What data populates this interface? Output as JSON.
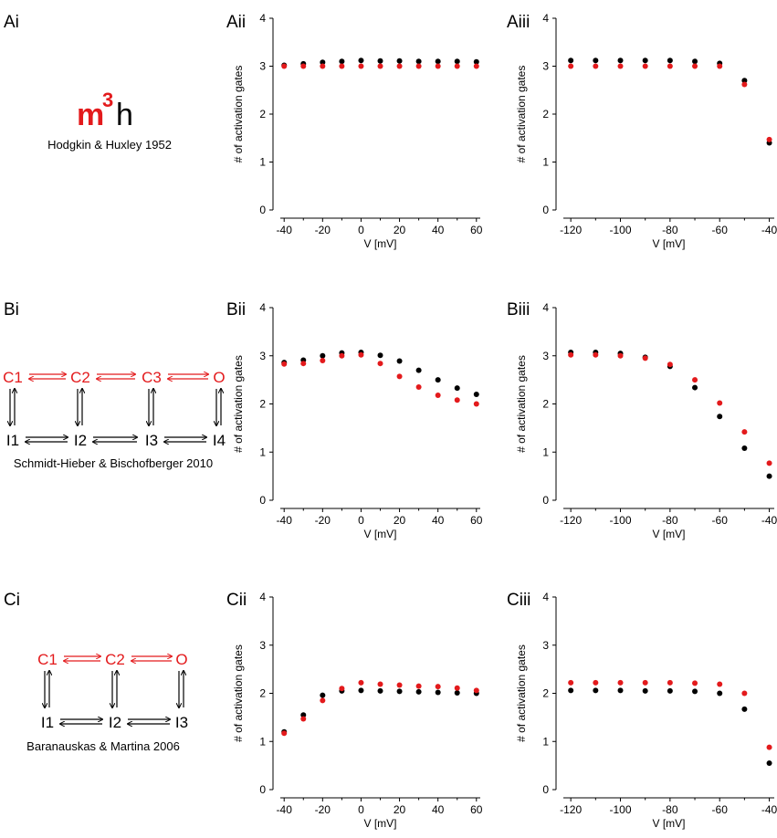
{
  "colors": {
    "model": "#e31a1c",
    "data": "#000000"
  },
  "panel_labels": {
    "ai": "Ai",
    "aii": "Aii",
    "aiii": "Aiii",
    "bi": "Bi",
    "bii": "Bii",
    "biii": "Biii",
    "ci": "Ci",
    "cii": "Cii",
    "ciii": "Ciii"
  },
  "hh": {
    "m": "m",
    "exp": "3",
    "h": "h",
    "citation": "Hodgkin & Huxley 1952"
  },
  "scheme_b": {
    "top": [
      "C1",
      "C2",
      "C3",
      "O"
    ],
    "bottom": [
      "I1",
      "I2",
      "I3",
      "I4"
    ],
    "citation": "Schmidt-Hieber & Bischofberger 2010"
  },
  "scheme_c": {
    "top": [
      "C1",
      "C2",
      "O"
    ],
    "bottom": [
      "I1",
      "I2",
      "I3"
    ],
    "citation": "Baranauskas & Martina 2006"
  },
  "chart_data": [
    {
      "id": "aii",
      "type": "scatter",
      "xlabel": "V [mV]",
      "ylabel": "# of activation gates",
      "xlim": [
        -42,
        62
      ],
      "ylim": [
        0,
        4
      ],
      "xticks": [
        "-40",
        "-20",
        "0",
        "20",
        "40",
        "60"
      ],
      "xtick_values": [
        -40,
        -20,
        0,
        20,
        40,
        60
      ],
      "yticks": [
        "0",
        "1",
        "2",
        "3",
        "4"
      ],
      "yticks_values": [
        0,
        1,
        2,
        3,
        4
      ],
      "series": [
        {
          "name": "black",
          "x": [
            -40,
            -30,
            -20,
            -10,
            0,
            10,
            20,
            30,
            40,
            50,
            60
          ],
          "values": [
            3.02,
            3.05,
            3.08,
            3.1,
            3.12,
            3.11,
            3.11,
            3.1,
            3.1,
            3.1,
            3.09
          ]
        },
        {
          "name": "red",
          "x": [
            -40,
            -30,
            -20,
            -10,
            0,
            10,
            20,
            30,
            40,
            50,
            60
          ],
          "values": [
            3.0,
            3.0,
            3.0,
            3.0,
            3.0,
            3.0,
            3.0,
            3.0,
            3.0,
            3.0,
            3.0
          ]
        }
      ]
    },
    {
      "id": "aiii",
      "type": "scatter",
      "xlabel": "V [mV]",
      "ylabel": "# of activation gates",
      "xlim": [
        -123,
        -38
      ],
      "ylim": [
        0,
        4
      ],
      "xticks": [
        "-120",
        "-100",
        "-80",
        "-60",
        "-40"
      ],
      "xtick_values": [
        -120,
        -100,
        -80,
        -60,
        -40
      ],
      "yticks": [
        "0",
        "1",
        "2",
        "3",
        "4"
      ],
      "yticks_values": [
        0,
        1,
        2,
        3,
        4
      ],
      "series": [
        {
          "name": "black",
          "x": [
            -120,
            -110,
            -100,
            -90,
            -80,
            -70,
            -60,
            -50,
            -40
          ],
          "values": [
            3.12,
            3.12,
            3.12,
            3.12,
            3.12,
            3.1,
            3.06,
            2.7,
            1.4
          ]
        },
        {
          "name": "red",
          "x": [
            -120,
            -110,
            -100,
            -90,
            -80,
            -70,
            -60,
            -50,
            -40
          ],
          "values": [
            3.0,
            3.0,
            3.0,
            3.0,
            3.0,
            3.0,
            3.0,
            2.62,
            1.47
          ]
        }
      ]
    },
    {
      "id": "bii",
      "type": "scatter",
      "xlabel": "V [mV]",
      "ylabel": "# of activation gates",
      "xlim": [
        -42,
        62
      ],
      "ylim": [
        0,
        4
      ],
      "xticks": [
        "-40",
        "-20",
        "0",
        "20",
        "40",
        "60"
      ],
      "xtick_values": [
        -40,
        -20,
        0,
        20,
        40,
        60
      ],
      "yticks": [
        "0",
        "1",
        "2",
        "3",
        "4"
      ],
      "yticks_values": [
        0,
        1,
        2,
        3,
        4
      ],
      "series": [
        {
          "name": "black",
          "x": [
            -40,
            -30,
            -20,
            -10,
            0,
            10,
            20,
            30,
            40,
            50,
            60
          ],
          "values": [
            2.86,
            2.91,
            3.0,
            3.06,
            3.07,
            3.01,
            2.89,
            2.7,
            2.5,
            2.33,
            2.2
          ]
        },
        {
          "name": "red",
          "x": [
            -40,
            -30,
            -20,
            -10,
            0,
            10,
            20,
            30,
            40,
            50,
            60
          ],
          "values": [
            2.83,
            2.84,
            2.9,
            3.0,
            3.02,
            2.84,
            2.57,
            2.35,
            2.18,
            2.08,
            2.0
          ]
        }
      ]
    },
    {
      "id": "biii",
      "type": "scatter",
      "xlabel": "V [mV]",
      "ylabel": "# of activation gates",
      "xlim": [
        -123,
        -38
      ],
      "ylim": [
        0,
        4
      ],
      "xticks": [
        "-120",
        "-100",
        "-80",
        "-60",
        "-40"
      ],
      "xtick_values": [
        -120,
        -100,
        -80,
        -60,
        -40
      ],
      "yticks": [
        "0",
        "1",
        "2",
        "3",
        "4"
      ],
      "yticks_values": [
        0,
        1,
        2,
        3,
        4
      ],
      "series": [
        {
          "name": "black",
          "x": [
            -120,
            -110,
            -100,
            -90,
            -80,
            -70,
            -60,
            -50,
            -40
          ],
          "values": [
            3.07,
            3.07,
            3.05,
            2.97,
            2.78,
            2.34,
            1.74,
            1.08,
            0.5
          ]
        },
        {
          "name": "red",
          "x": [
            -120,
            -110,
            -100,
            -90,
            -80,
            -70,
            -60,
            -50,
            -40
          ],
          "values": [
            3.02,
            3.02,
            3.0,
            2.95,
            2.82,
            2.5,
            2.02,
            1.42,
            0.77
          ]
        }
      ]
    },
    {
      "id": "cii",
      "type": "scatter",
      "xlabel": "V [mV]",
      "ylabel": "# of activation gates",
      "xlim": [
        -42,
        62
      ],
      "ylim": [
        0,
        4
      ],
      "xticks": [
        "-40",
        "-20",
        "0",
        "20",
        "40",
        "60"
      ],
      "xtick_values": [
        -40,
        -20,
        0,
        20,
        40,
        60
      ],
      "yticks": [
        "0",
        "1",
        "2",
        "3",
        "4"
      ],
      "yticks_values": [
        0,
        1,
        2,
        3,
        4
      ],
      "series": [
        {
          "name": "black",
          "x": [
            -40,
            -30,
            -20,
            -10,
            0,
            10,
            20,
            30,
            40,
            50,
            60
          ],
          "values": [
            1.2,
            1.55,
            1.96,
            2.05,
            2.06,
            2.05,
            2.04,
            2.03,
            2.02,
            2.01,
            2.0
          ]
        },
        {
          "name": "red",
          "x": [
            -40,
            -30,
            -20,
            -10,
            0,
            10,
            20,
            30,
            40,
            50,
            60
          ],
          "values": [
            1.17,
            1.47,
            1.85,
            2.1,
            2.22,
            2.19,
            2.17,
            2.15,
            2.14,
            2.11,
            2.06
          ]
        }
      ]
    },
    {
      "id": "ciii",
      "type": "scatter",
      "xlabel": "V [mV]",
      "ylabel": "# of activation gates",
      "xlim": [
        -123,
        -38
      ],
      "ylim": [
        0,
        4
      ],
      "xticks": [
        "-120",
        "-100",
        "-80",
        "-60",
        "-40"
      ],
      "xtick_values": [
        -120,
        -100,
        -80,
        -60,
        -40
      ],
      "yticks": [
        "0",
        "1",
        "2",
        "3",
        "4"
      ],
      "yticks_values": [
        0,
        1,
        2,
        3,
        4
      ],
      "series": [
        {
          "name": "black",
          "x": [
            -120,
            -110,
            -100,
            -90,
            -80,
            -70,
            -60,
            -50,
            -40
          ],
          "values": [
            2.06,
            2.06,
            2.06,
            2.05,
            2.05,
            2.04,
            2.0,
            1.67,
            0.55
          ]
        },
        {
          "name": "red",
          "x": [
            -120,
            -110,
            -100,
            -90,
            -80,
            -70,
            -60,
            -50,
            -40
          ],
          "values": [
            2.22,
            2.22,
            2.22,
            2.22,
            2.22,
            2.21,
            2.19,
            2.0,
            0.88
          ]
        }
      ]
    }
  ]
}
